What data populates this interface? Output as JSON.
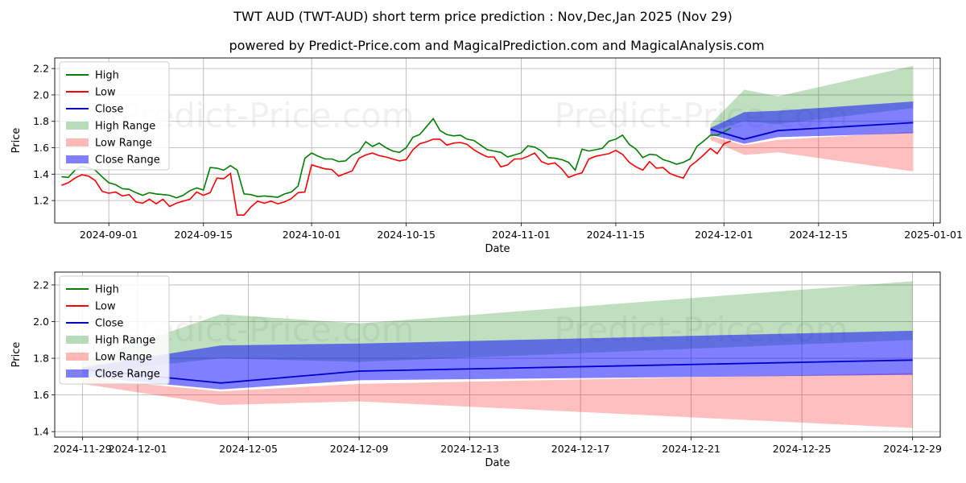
{
  "title": "TWT AUD (TWT-AUD) short term price prediction : Nov,Dec,Jan 2025 (Nov 29)",
  "subtitle": "powered by Predict-Price.com and MagicalPrediction.com and MagicalAnalysis.com",
  "watermark": "Predict-Price.com",
  "colors": {
    "high": "#008000",
    "low": "#ff0000",
    "close": "#0000cc",
    "high_range": "#b3dcb3",
    "low_range": "#ffbcbc",
    "close_range": "#7b7bff",
    "grid": "#b0b0b0"
  },
  "chart_data": [
    {
      "type": "line",
      "xlabel": "Date",
      "ylabel": "Price",
      "x_domain": [
        "2024-08-24",
        "2025-01-02"
      ],
      "ylim": [
        1.03,
        2.28
      ],
      "yticks": [
        1.2,
        1.4,
        1.6,
        1.8,
        2.0,
        2.2
      ],
      "xticks": [
        "2024-09-01",
        "2024-09-15",
        "2024-10-01",
        "2024-10-15",
        "2024-11-01",
        "2024-11-15",
        "2024-12-01",
        "2024-12-15",
        "2025-01-01"
      ],
      "legend": [
        "High",
        "Low",
        "Close",
        "High Range",
        "Low Range",
        "Close Range"
      ],
      "legend_position": "top-left",
      "grid": true,
      "history_start": "2024-08-25",
      "high": [
        1.38,
        1.375,
        1.43,
        1.46,
        1.445,
        1.43,
        1.38,
        1.335,
        1.32,
        1.29,
        1.285,
        1.26,
        1.24,
        1.26,
        1.25,
        1.245,
        1.24,
        1.22,
        1.24,
        1.275,
        1.295,
        1.28,
        1.45,
        1.445,
        1.43,
        1.465,
        1.43,
        1.25,
        1.245,
        1.23,
        1.235,
        1.23,
        1.225,
        1.25,
        1.265,
        1.31,
        1.52,
        1.56,
        1.535,
        1.515,
        1.515,
        1.495,
        1.5,
        1.545,
        1.57,
        1.645,
        1.61,
        1.635,
        1.6,
        1.575,
        1.565,
        1.6,
        1.68,
        1.7,
        1.76,
        1.82,
        1.73,
        1.7,
        1.69,
        1.695,
        1.665,
        1.655,
        1.62,
        1.585,
        1.575,
        1.565,
        1.53,
        1.545,
        1.56,
        1.615,
        1.605,
        1.575,
        1.525,
        1.52,
        1.51,
        1.49,
        1.43,
        1.59,
        1.575,
        1.585,
        1.595,
        1.65,
        1.665,
        1.695,
        1.625,
        1.59,
        1.525,
        1.55,
        1.545,
        1.51,
        1.495,
        1.475,
        1.49,
        1.515,
        1.61,
        1.65,
        1.695,
        1.695,
        1.72,
        1.75
      ],
      "low": [
        1.315,
        1.335,
        1.37,
        1.395,
        1.385,
        1.35,
        1.27,
        1.255,
        1.265,
        1.235,
        1.245,
        1.19,
        1.18,
        1.21,
        1.175,
        1.21,
        1.155,
        1.18,
        1.195,
        1.21,
        1.265,
        1.24,
        1.26,
        1.37,
        1.365,
        1.405,
        1.09,
        1.09,
        1.15,
        1.195,
        1.18,
        1.195,
        1.175,
        1.19,
        1.215,
        1.26,
        1.265,
        1.47,
        1.455,
        1.44,
        1.435,
        1.385,
        1.405,
        1.425,
        1.52,
        1.545,
        1.56,
        1.54,
        1.53,
        1.515,
        1.5,
        1.51,
        1.585,
        1.63,
        1.645,
        1.665,
        1.665,
        1.62,
        1.635,
        1.64,
        1.625,
        1.585,
        1.555,
        1.53,
        1.53,
        1.455,
        1.47,
        1.515,
        1.515,
        1.535,
        1.56,
        1.495,
        1.475,
        1.485,
        1.44,
        1.375,
        1.395,
        1.41,
        1.515,
        1.535,
        1.545,
        1.555,
        1.58,
        1.55,
        1.49,
        1.455,
        1.43,
        1.495,
        1.445,
        1.45,
        1.405,
        1.385,
        1.37,
        1.46,
        1.5,
        1.545,
        1.595,
        1.555,
        1.63,
        1.65
      ]
    },
    {
      "type": "area",
      "xlabel": "Date",
      "ylabel": "Price",
      "x_domain": [
        "2024-11-28",
        "2024-12-30"
      ],
      "ylim": [
        1.37,
        2.27
      ],
      "yticks": [
        1.4,
        1.6,
        1.8,
        2.0,
        2.2
      ],
      "xticks": [
        "2024-11-29",
        "2024-12-01",
        "2024-12-05",
        "2024-12-09",
        "2024-12-13",
        "2024-12-17",
        "2024-12-21",
        "2024-12-25",
        "2024-12-29"
      ],
      "legend": [
        "High",
        "Low",
        "Close",
        "High Range",
        "Low Range",
        "Close Range"
      ],
      "legend_position": "top-left",
      "grid": true,
      "forecast_dates": [
        "2024-11-29",
        "2024-12-04",
        "2024-12-09",
        "2024-12-29"
      ],
      "close": [
        1.74,
        1.665,
        1.73,
        1.79
      ],
      "close_range_high": [
        1.75,
        1.87,
        1.88,
        1.95
      ],
      "close_range_low": [
        1.7,
        1.63,
        1.68,
        1.71
      ],
      "high_range_high": [
        1.78,
        2.04,
        1.99,
        2.22
      ],
      "high_range_low": [
        1.72,
        1.8,
        1.78,
        1.9
      ],
      "low_range_high": [
        1.69,
        1.62,
        1.66,
        1.72
      ],
      "low_range_low": [
        1.66,
        1.545,
        1.565,
        1.42
      ]
    }
  ]
}
